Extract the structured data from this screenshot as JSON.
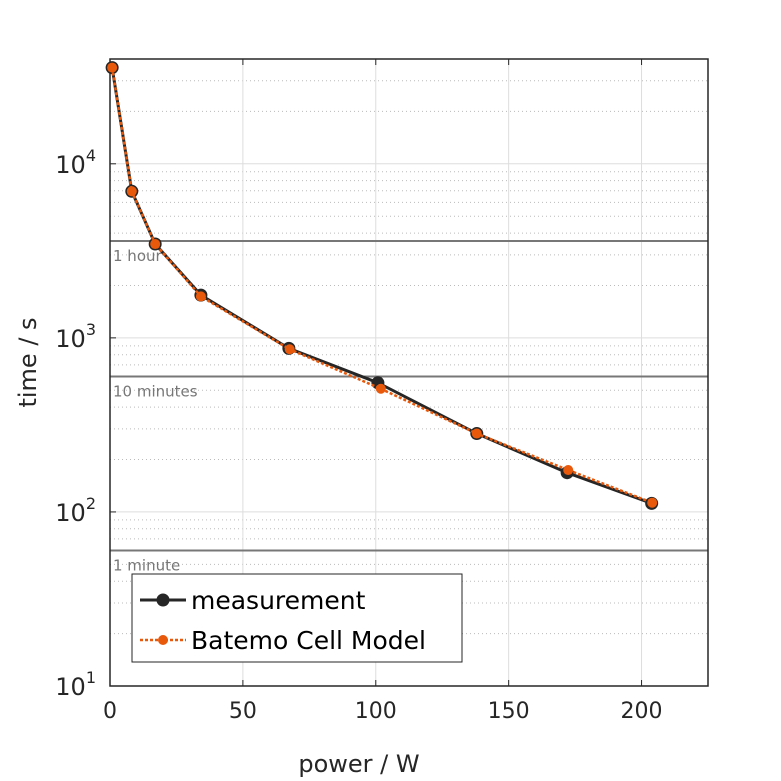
{
  "chart_data": {
    "type": "line",
    "xlabel": "power / W",
    "ylabel": "time / s",
    "xlim": [
      0,
      225
    ],
    "ylim": [
      10,
      40000
    ],
    "yscale": "log",
    "grid": true,
    "legend_position": "bottom-left",
    "x_ticks": [
      "0",
      "50",
      "100",
      "150",
      "200"
    ],
    "x_tick_values": [
      0,
      50,
      100,
      150,
      200
    ],
    "y_ticks": [
      {
        "base": "10",
        "exp": "1",
        "value": 10
      },
      {
        "base": "10",
        "exp": "2",
        "value": 100
      },
      {
        "base": "10",
        "exp": "3",
        "value": 1000
      },
      {
        "base": "10",
        "exp": "4",
        "value": 10000
      }
    ],
    "reference_lines": [
      {
        "label": "1 hour",
        "value": 3600
      },
      {
        "label": "10 minutes",
        "value": 600
      },
      {
        "label": "1 minute",
        "value": 60
      }
    ],
    "series": [
      {
        "name": "measurement",
        "color": "#262626",
        "style": "solid",
        "x": [
          0.8,
          8.2,
          17,
          34.2,
          67.3,
          100.8,
          138,
          172,
          203.8
        ],
        "y": [
          35700,
          6950,
          3460,
          1760,
          870,
          552,
          282,
          168,
          112
        ]
      },
      {
        "name": "Batemo Cell Model",
        "color": "#e8590c",
        "style": "dotted",
        "x": [
          0.8,
          8.2,
          17,
          34.2,
          67.6,
          101.9,
          138,
          172.4,
          204
        ],
        "y": [
          35700,
          6950,
          3460,
          1730,
          860,
          510,
          282,
          174,
          113
        ]
      }
    ]
  }
}
